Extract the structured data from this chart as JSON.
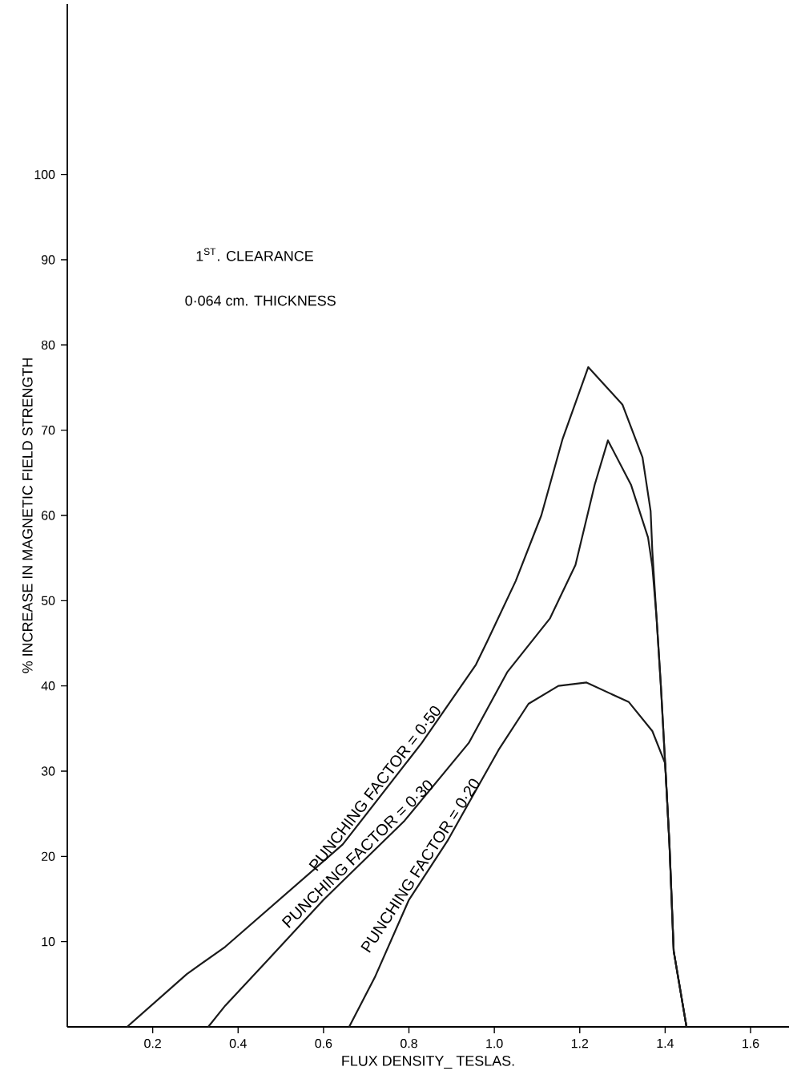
{
  "chart_data": {
    "type": "line",
    "xlabel": "FLUX DENSITY_ TESLAS.",
    "ylabel": "% INCREASE IN MAGNETIC FIELD STRENGTH",
    "annotations": [
      "1$^{ST}$. CLEARANCE",
      "0·064 cm. THICKNESS"
    ],
    "series": [
      {
        "name": "PUNCHING FACTOR = 0·50",
        "color": "#1a1a1a",
        "x": [
          0.14,
          0.28,
          0.37,
          0.645,
          0.83,
          0.957,
          0.985,
          1.05,
          1.11,
          1.16,
          1.22,
          1.3,
          1.347,
          1.366,
          1.37,
          1.38,
          1.39,
          1.4,
          1.41,
          1.42,
          1.45
        ],
        "values": [
          0,
          6.2,
          9.4,
          21.4,
          33.3,
          42.5,
          45.4,
          52.3,
          60,
          69,
          77.4,
          73,
          66.8,
          60.5,
          55.8,
          47.9,
          40,
          30.9,
          21.5,
          8.9,
          0
        ]
      },
      {
        "name": "PUNCHING FACTOR = 0·30",
        "color": "#1a1a1a",
        "x": [
          0.33,
          0.37,
          0.465,
          0.6,
          0.79,
          0.94,
          1.03,
          1.13,
          1.19,
          1.235,
          1.266,
          1.32,
          1.36,
          1.37,
          1.38,
          1.39,
          1.4,
          1.41,
          1.42,
          1.45
        ],
        "values": [
          0,
          2.5,
          7.6,
          14.9,
          24.2,
          33.3,
          41.6,
          47.9,
          54.2,
          63.6,
          68.8,
          63.6,
          57.4,
          54,
          47.9,
          40,
          30.9,
          21.5,
          8.9,
          0
        ]
      },
      {
        "name": "PUNCHING FACTOR = 0·20",
        "color": "#1a1a1a",
        "x": [
          0.66,
          0.72,
          0.8,
          0.89,
          1.01,
          1.08,
          1.15,
          1.216,
          1.315,
          1.37,
          1.4,
          1.41,
          1.42,
          1.45
        ],
        "values": [
          0,
          5.8,
          14.9,
          21.8,
          32.5,
          37.9,
          40,
          40.4,
          38.1,
          34.7,
          30.9,
          21.5,
          8.9,
          0
        ]
      }
    ],
    "xlim": [
      0,
      1.69
    ],
    "ylim": [
      0,
      120
    ],
    "xticks": [
      0.2,
      0.4,
      0.6,
      0.8,
      {
        "value": 1.0,
        "label": "1.0"
      },
      1.2,
      1.4,
      1.6
    ],
    "yticks": [
      10,
      20,
      30,
      40,
      50,
      60,
      70,
      80,
      90,
      100
    ],
    "grid": false,
    "marker": "none",
    "line_style": "solid"
  }
}
